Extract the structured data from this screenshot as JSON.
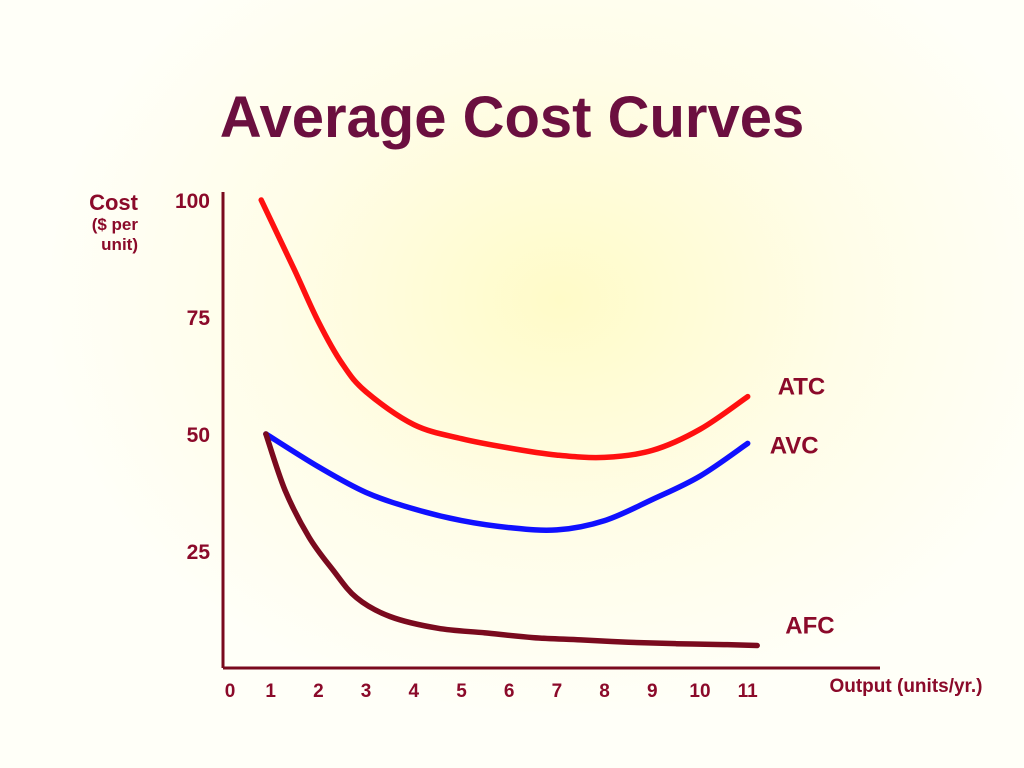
{
  "chart_data": {
    "type": "line",
    "title": "Average Cost Curves",
    "ylabel_lines": [
      "Cost",
      "($ per",
      "unit)"
    ],
    "xlabel": "Output (units/yr.)",
    "xlim": [
      0,
      12
    ],
    "ylim": [
      0,
      110
    ],
    "x_ticks": [
      {
        "value": 0,
        "label": "0"
      },
      {
        "value": 1,
        "label": "1"
      },
      {
        "value": 2,
        "label": "2"
      },
      {
        "value": 3,
        "label": "3"
      },
      {
        "value": 4,
        "label": "4"
      },
      {
        "value": 5,
        "label": "5"
      },
      {
        "value": 6,
        "label": "6"
      },
      {
        "value": 7,
        "label": "7"
      },
      {
        "value": 8,
        "label": "8"
      },
      {
        "value": 9,
        "label": "9"
      },
      {
        "value": 10,
        "label": "10"
      },
      {
        "value": 11,
        "label": "11"
      }
    ],
    "y_ticks": [
      {
        "value": 100,
        "label": "100"
      },
      {
        "value": 75,
        "label": "75"
      },
      {
        "value": 50,
        "label": "50"
      },
      {
        "value": 25,
        "label": "25"
      }
    ],
    "grid": false,
    "series": [
      {
        "name": "ATC",
        "color": "#ff1010",
        "x": [
          0.8,
          1.5,
          2.0,
          2.5,
          3.0,
          4.0,
          5.0,
          6.0,
          7.0,
          8.0,
          9.0,
          10.0,
          11.0
        ],
        "y": [
          100,
          85,
          74,
          65,
          59,
          52,
          49,
          47,
          45.5,
          45,
          46.5,
          51,
          58
        ]
      },
      {
        "name": "AVC",
        "color": "#1010ff",
        "x": [
          0.9,
          2.0,
          3.0,
          4.0,
          5.0,
          6.0,
          7.0,
          8.0,
          9.0,
          10.0,
          11.0
        ],
        "y": [
          50,
          43,
          37.5,
          34,
          31.5,
          30,
          29.5,
          31.5,
          36,
          41,
          48
        ]
      },
      {
        "name": "AFC",
        "color": "#7a0a1e",
        "x": [
          0.9,
          1.3,
          1.8,
          2.3,
          2.8,
          3.5,
          4.5,
          5.5,
          6.5,
          7.5,
          8.5,
          9.5,
          10.5,
          11.2
        ],
        "y": [
          50,
          38,
          28,
          21,
          15,
          11,
          8.5,
          7.5,
          6.5,
          6,
          5.5,
          5.2,
          5,
          4.8
        ]
      }
    ]
  }
}
